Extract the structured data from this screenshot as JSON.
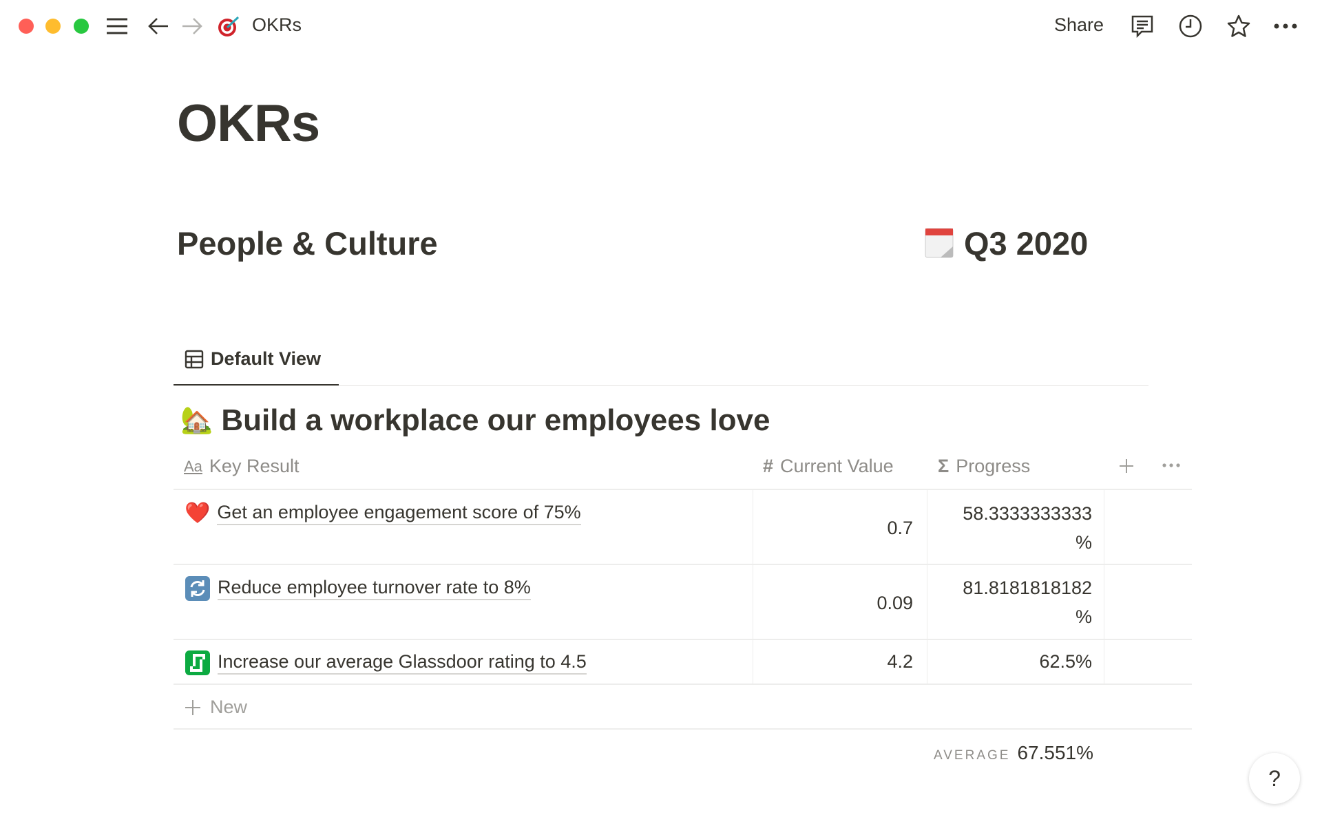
{
  "window": {
    "controls_colors": [
      "#ff5f57",
      "#febc2e",
      "#28c840"
    ]
  },
  "topbar": {
    "page_icon": "target-emoji",
    "page_title": "OKRs",
    "share_label": "Share",
    "icons": [
      "comment-icon",
      "clock-icon",
      "star-icon",
      "more-icon"
    ]
  },
  "page": {
    "title": "OKRs",
    "left_heading": "People & Culture",
    "right_heading": "Q3 2020",
    "right_heading_icon": "calendar-emoji"
  },
  "view": {
    "tab_label": "Default View"
  },
  "group": {
    "emoji": "🏡",
    "title": "Build a workplace our employees love"
  },
  "table": {
    "columns": [
      {
        "label": "Key Result",
        "icon": "Aa"
      },
      {
        "label": "Current Value",
        "icon": "#"
      },
      {
        "label": "Progress",
        "icon": "Σ"
      }
    ],
    "rows": [
      {
        "emoji": "❤️",
        "key_result": "Get an employee engagement score of 75%",
        "current_value": "0.7",
        "progress_line1": "58.3333333333",
        "progress_line2": "%"
      },
      {
        "emoji": "🔄",
        "key_result": "Reduce employee turnover rate to 8%",
        "current_value": "0.09",
        "progress_line1": "81.8181818182",
        "progress_line2": "%"
      },
      {
        "emoji": "glassdoor",
        "key_result": "Increase our average Glassdoor rating to 4.5",
        "current_value": "4.2",
        "progress_line1": "62.5%",
        "progress_line2": ""
      }
    ],
    "new_label": "New",
    "average_label": "AVERAGE",
    "average_value": "67.551%"
  },
  "help": {
    "label": "?"
  }
}
